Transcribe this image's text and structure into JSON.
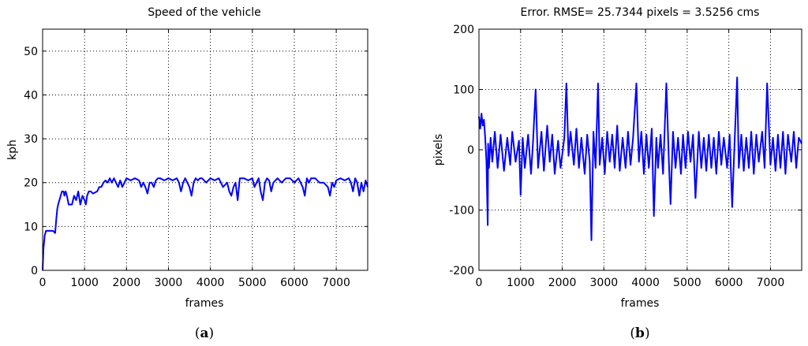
{
  "charts": [
    {
      "panel_caption": {
        "open": "(",
        "letter": "a",
        "close": ")"
      },
      "chart_data": {
        "type": "line",
        "title": "Speed of the vehicle",
        "xlabel": "frames",
        "ylabel": "kph",
        "xlim": [
          0,
          7750
        ],
        "ylim": [
          0,
          55
        ],
        "xticks": [
          0,
          1000,
          2000,
          3000,
          4000,
          5000,
          6000,
          7000
        ],
        "yticks": [
          0,
          10,
          20,
          30,
          40,
          50
        ],
        "grid": true,
        "series": [
          {
            "color": "#0000ff",
            "x": [
              0,
              20,
              50,
              80,
              120,
              200,
              250,
              300,
              330,
              350,
              370,
              400,
              430,
              460,
              500,
              520,
              550,
              580,
              620,
              700,
              750,
              800,
              850,
              900,
              950,
              1000,
              1030,
              1060,
              1100,
              1150,
              1200,
              1300,
              1350,
              1400,
              1450,
              1500,
              1550,
              1600,
              1650,
              1700,
              1750,
              1800,
              1850,
              1900,
              1950,
              2000,
              2100,
              2200,
              2300,
              2350,
              2400,
              2450,
              2500,
              2550,
              2600,
              2650,
              2700,
              2750,
              2800,
              2900,
              3000,
              3100,
              3200,
              3250,
              3300,
              3350,
              3400,
              3450,
              3500,
              3550,
              3600,
              3650,
              3700,
              3750,
              3800,
              3900,
              4000,
              4100,
              4200,
              4300,
              4400,
              4450,
              4500,
              4550,
              4600,
              4650,
              4700,
              4800,
              4900,
              5000,
              5050,
              5100,
              5150,
              5200,
              5250,
              5300,
              5350,
              5400,
              5450,
              5500,
              5600,
              5700,
              5800,
              5900,
              6000,
              6100,
              6200,
              6250,
              6300,
              6350,
              6400,
              6500,
              6600,
              6700,
              6800,
              6850,
              6900,
              6950,
              7000,
              7100,
              7200,
              7300,
              7350,
              7400,
              7450,
              7500,
              7550,
              7600,
              7650,
              7700,
              7750
            ],
            "y": [
              0,
              5,
              8,
              9,
              9,
              9,
              9,
              8.5,
              12,
              14,
              15,
              16,
              17,
              18,
              18,
              17,
              18,
              17,
              15,
              15,
              17,
              16,
              18,
              15,
              17,
              16,
              15,
              17,
              18,
              18,
              17.5,
              18,
              19,
              19,
              20,
              20.5,
              20,
              21,
              20,
              21,
              20,
              19,
              20.5,
              19,
              20,
              21,
              20.5,
              21,
              20.5,
              19,
              20,
              19,
              17.5,
              20,
              20,
              19,
              20.5,
              21,
              21,
              20.5,
              21,
              20.5,
              21,
              20,
              18,
              20,
              21,
              20,
              19,
              17,
              20,
              21,
              20.5,
              21,
              21,
              20,
              21,
              20.5,
              21,
              19,
              20,
              18,
              17,
              19,
              20,
              16,
              21,
              21,
              20.5,
              21,
              19,
              20,
              21,
              18,
              16,
              20,
              21,
              20.5,
              18,
              20,
              21,
              20,
              21,
              21,
              20,
              21,
              19,
              17,
              21,
              20,
              21,
              21,
              20,
              20,
              19,
              17,
              20,
              19,
              20.5,
              21,
              20.5,
              21,
              20,
              18,
              21,
              20,
              17,
              20,
              18,
              20.5,
              19
            ]
          }
        ]
      }
    },
    {
      "panel_caption": {
        "open": "(",
        "letter": "b",
        "close": ")"
      },
      "chart_data": {
        "type": "line",
        "title": "Error. RMSE= 25.7344 pixels = 3.5256 cms",
        "xlabel": "frames",
        "ylabel": "pixels",
        "xlim": [
          0,
          7750
        ],
        "ylim": [
          -200,
          200
        ],
        "xticks": [
          0,
          1000,
          2000,
          3000,
          4000,
          5000,
          6000,
          7000
        ],
        "yticks": [
          -200,
          -100,
          0,
          100,
          200
        ],
        "grid": true,
        "series": [
          {
            "color": "#0000ff",
            "x": [
              0,
              30,
              60,
              90,
              120,
              150,
              180,
              210,
              220,
              240,
              280,
              320,
              380,
              450,
              520,
              600,
              680,
              750,
              800,
              880,
              960,
              1000,
              1050,
              1100,
              1180,
              1250,
              1300,
              1360,
              1420,
              1500,
              1560,
              1640,
              1700,
              1760,
              1820,
              1900,
              1960,
              2050,
              2100,
              2150,
              2200,
              2280,
              2340,
              2400,
              2460,
              2540,
              2600,
              2660,
              2700,
              2750,
              2800,
              2860,
              2900,
              2960,
              3020,
              3080,
              3140,
              3200,
              3260,
              3320,
              3380,
              3450,
              3520,
              3580,
              3640,
              3700,
              3780,
              3840,
              3900,
              3960,
              4020,
              4080,
              4150,
              4200,
              4260,
              4300,
              4360,
              4420,
              4500,
              4560,
              4600,
              4660,
              4720,
              4780,
              4850,
              4900,
              4960,
              5020,
              5080,
              5140,
              5200,
              5280,
              5340,
              5400,
              5460,
              5520,
              5580,
              5640,
              5700,
              5760,
              5820,
              5880,
              5960,
              6020,
              6080,
              6120,
              6200,
              6240,
              6300,
              6360,
              6420,
              6480,
              6540,
              6600,
              6660,
              6720,
              6800,
              6860,
              6920,
              7000,
              7060,
              7120,
              7180,
              7240,
              7300,
              7360,
              7420,
              7500,
              7560,
              7620,
              7680,
              7750
            ],
            "y": [
              55,
              35,
              60,
              40,
              50,
              20,
              -20,
              -125,
              10,
              -30,
              20,
              -20,
              30,
              -30,
              25,
              -35,
              20,
              -25,
              30,
              -20,
              15,
              -75,
              20,
              -30,
              25,
              -40,
              15,
              100,
              -30,
              30,
              -35,
              40,
              -20,
              25,
              -40,
              15,
              -30,
              20,
              110,
              -10,
              30,
              -25,
              35,
              -30,
              20,
              -40,
              25,
              -20,
              -150,
              30,
              -30,
              110,
              -25,
              20,
              -40,
              30,
              -20,
              25,
              -30,
              40,
              -35,
              20,
              -30,
              30,
              -25,
              20,
              110,
              -20,
              30,
              -40,
              25,
              -30,
              35,
              -110,
              20,
              -30,
              25,
              -40,
              110,
              -20,
              -90,
              30,
              -30,
              20,
              -40,
              25,
              -30,
              30,
              -20,
              25,
              -80,
              30,
              -30,
              20,
              -35,
              25,
              -30,
              20,
              -40,
              30,
              -25,
              20,
              -30,
              25,
              -95,
              -20,
              120,
              -30,
              25,
              -35,
              20,
              -30,
              30,
              -40,
              25,
              -20,
              30,
              -30,
              110,
              -25,
              20,
              -35,
              25,
              -30,
              30,
              -40,
              25,
              -20,
              30,
              -30,
              20,
              10
            ]
          }
        ]
      }
    }
  ]
}
